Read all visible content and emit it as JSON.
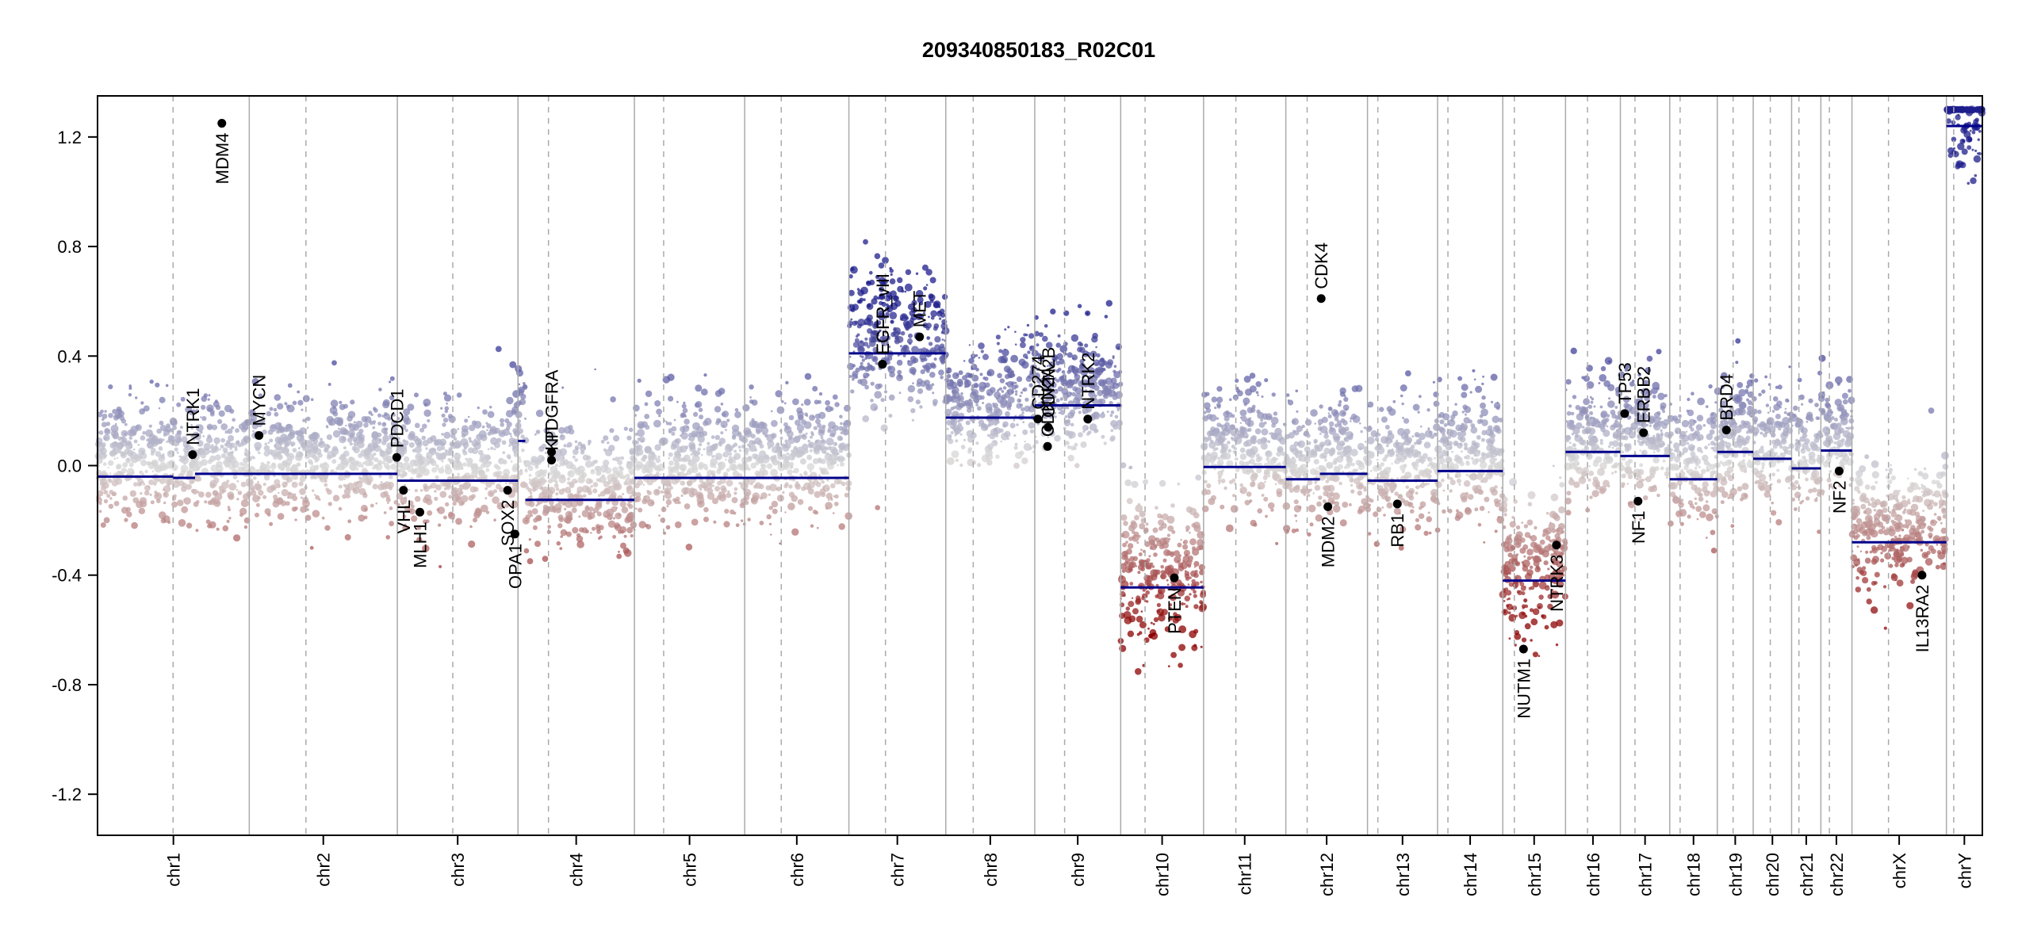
{
  "chart_data": {
    "type": "scatter",
    "title": "209340850183_R02C01",
    "xlabel": "",
    "ylabel": "",
    "ylim": [
      -1.35,
      1.35
    ],
    "y_ticks": [
      -1.2,
      -0.8,
      -0.4,
      0.0,
      0.4,
      0.8,
      1.2
    ],
    "y_tick_labels": [
      "-1.2",
      "-0.8",
      "-0.4",
      "0.0",
      "0.4",
      "0.8",
      "1.2"
    ],
    "grid": false,
    "colors": {
      "gain": "#1c1c8c",
      "neutral": "#d4d4d4",
      "loss": "#8b0000",
      "segment": "#00008b",
      "gene_point": "#000000",
      "chr_boundary": "#aaaaaa",
      "centromere": "#aaaaaa"
    },
    "chromosomes": [
      {
        "name": "chr1",
        "size": 249,
        "centromere": 124
      },
      {
        "name": "chr2",
        "size": 243,
        "centromere": 93
      },
      {
        "name": "chr3",
        "size": 198,
        "centromere": 91
      },
      {
        "name": "chr4",
        "size": 191,
        "centromere": 50
      },
      {
        "name": "chr5",
        "size": 181,
        "centromere": 48
      },
      {
        "name": "chr6",
        "size": 171,
        "centromere": 60
      },
      {
        "name": "chr7",
        "size": 159,
        "centromere": 60
      },
      {
        "name": "chr8",
        "size": 146,
        "centromere": 45
      },
      {
        "name": "chr9",
        "size": 141,
        "centromere": 49
      },
      {
        "name": "chr10",
        "size": 136,
        "centromere": 40
      },
      {
        "name": "chr11",
        "size": 135,
        "centromere": 53
      },
      {
        "name": "chr12",
        "size": 134,
        "centromere": 35
      },
      {
        "name": "chr13",
        "size": 115,
        "centromere": 17
      },
      {
        "name": "chr14",
        "size": 107,
        "centromere": 17
      },
      {
        "name": "chr15",
        "size": 103,
        "centromere": 19
      },
      {
        "name": "chr16",
        "size": 90,
        "centromere": 36
      },
      {
        "name": "chr17",
        "size": 81,
        "centromere": 24
      },
      {
        "name": "chr18",
        "size": 78,
        "centromere": 17
      },
      {
        "name": "chr19",
        "size": 59,
        "centromere": 26
      },
      {
        "name": "chr20",
        "size": 63,
        "centromere": 28
      },
      {
        "name": "chr21",
        "size": 48,
        "centromere": 12
      },
      {
        "name": "chr22",
        "size": 51,
        "centromere": 14
      },
      {
        "name": "chrX",
        "size": 155,
        "centromere": 60
      },
      {
        "name": "chrY",
        "size": 59,
        "centromere": 12
      }
    ],
    "segments": [
      {
        "chr": "chr1",
        "start": 0,
        "end": 124,
        "value": -0.04
      },
      {
        "chr": "chr1",
        "start": 124,
        "end": 160,
        "value": -0.045
      },
      {
        "chr": "chr1",
        "start": 160,
        "end": 249,
        "value": -0.03
      },
      {
        "chr": "chr2",
        "start": 0,
        "end": 243,
        "value": -0.03
      },
      {
        "chr": "chr3",
        "start": 0,
        "end": 198,
        "value": -0.055
      },
      {
        "chr": "chr4",
        "start": 0,
        "end": 12,
        "value": 0.09
      },
      {
        "chr": "chr4",
        "start": 12,
        "end": 191,
        "value": -0.125
      },
      {
        "chr": "chr5",
        "start": 0,
        "end": 181,
        "value": -0.045
      },
      {
        "chr": "chr6",
        "start": 0,
        "end": 171,
        "value": -0.045
      },
      {
        "chr": "chr7",
        "start": 0,
        "end": 159,
        "value": 0.41
      },
      {
        "chr": "chr8",
        "start": 0,
        "end": 146,
        "value": 0.175
      },
      {
        "chr": "chr9",
        "start": 0,
        "end": 141,
        "value": 0.22
      },
      {
        "chr": "chr10",
        "start": 0,
        "end": 136,
        "value": -0.445
      },
      {
        "chr": "chr11",
        "start": 0,
        "end": 135,
        "value": -0.005
      },
      {
        "chr": "chr12",
        "start": 0,
        "end": 56,
        "value": -0.05
      },
      {
        "chr": "chr12",
        "start": 56,
        "end": 134,
        "value": -0.03
      },
      {
        "chr": "chr13",
        "start": 0,
        "end": 115,
        "value": -0.055
      },
      {
        "chr": "chr14",
        "start": 0,
        "end": 107,
        "value": -0.02
      },
      {
        "chr": "chr15",
        "start": 0,
        "end": 103,
        "value": -0.42
      },
      {
        "chr": "chr16",
        "start": 0,
        "end": 90,
        "value": 0.05
      },
      {
        "chr": "chr17",
        "start": 0,
        "end": 81,
        "value": 0.035
      },
      {
        "chr": "chr18",
        "start": 0,
        "end": 78,
        "value": -0.05
      },
      {
        "chr": "chr19",
        "start": 0,
        "end": 59,
        "value": 0.05
      },
      {
        "chr": "chr20",
        "start": 0,
        "end": 63,
        "value": 0.025
      },
      {
        "chr": "chr21",
        "start": 0,
        "end": 48,
        "value": -0.01
      },
      {
        "chr": "chr22",
        "start": 0,
        "end": 51,
        "value": 0.055
      },
      {
        "chr": "chrX",
        "start": 0,
        "end": 155,
        "value": -0.28
      },
      {
        "chr": "chrY",
        "start": 0,
        "end": 59,
        "value": 1.24
      }
    ],
    "genes": [
      {
        "name": "NTRK1",
        "chr": "chr1",
        "pos": 156,
        "value": 0.04,
        "label_side": "above"
      },
      {
        "name": "MDM4",
        "chr": "chr1",
        "pos": 204,
        "value": 1.25,
        "label_side": "below"
      },
      {
        "name": "MYCN",
        "chr": "chr2",
        "pos": 16,
        "value": 0.11,
        "label_side": "above"
      },
      {
        "name": "PDCD1",
        "chr": "chr2",
        "pos": 242,
        "value": 0.03,
        "label_side": "above"
      },
      {
        "name": "VHL",
        "chr": "chr3",
        "pos": 10,
        "value": -0.09,
        "label_side": "below"
      },
      {
        "name": "MLH1",
        "chr": "chr3",
        "pos": 37,
        "value": -0.17,
        "label_side": "below"
      },
      {
        "name": "SOX2",
        "chr": "chr3",
        "pos": 181,
        "value": -0.09,
        "label_side": "below"
      },
      {
        "name": "OPA1",
        "chr": "chr3",
        "pos": 193,
        "value": -0.25,
        "label_side": "below"
      },
      {
        "name": "PDGFRA",
        "chr": "chr4",
        "pos": 55,
        "value": 0.05,
        "label_side": "above"
      },
      {
        "name": "KIT",
        "chr": "chr4",
        "pos": 55,
        "value": 0.02,
        "label_side": "above"
      },
      {
        "name": "EGFR",
        "chr": "chr7",
        "pos": 55,
        "value": 0.37,
        "label_side": "above"
      },
      {
        "name": "EGFR_vIII",
        "chr": "chr7",
        "pos": 55,
        "value": 0.37,
        "label_side": "above"
      },
      {
        "name": "MET",
        "chr": "chr7",
        "pos": 116,
        "value": 0.47,
        "label_side": "above"
      },
      {
        "name": "CD274",
        "chr": "chr9",
        "pos": 5,
        "value": 0.17,
        "label_side": "above"
      },
      {
        "name": "CDKN2A",
        "chr": "chr9",
        "pos": 21,
        "value": 0.07,
        "label_side": "above"
      },
      {
        "name": "CDKN2B",
        "chr": "chr9",
        "pos": 22,
        "value": 0.14,
        "label_side": "above"
      },
      {
        "name": "NTRK2",
        "chr": "chr9",
        "pos": 87,
        "value": 0.17,
        "label_side": "above"
      },
      {
        "name": "PTEN",
        "chr": "chr10",
        "pos": 88,
        "value": -0.41,
        "label_side": "below"
      },
      {
        "name": "MDM2",
        "chr": "chr12",
        "pos": 69,
        "value": -0.15,
        "label_side": "below"
      },
      {
        "name": "CDK4",
        "chr": "chr12",
        "pos": 58,
        "value": 0.61,
        "label_side": "above"
      },
      {
        "name": "RB1",
        "chr": "chr13",
        "pos": 49,
        "value": -0.14,
        "label_side": "below"
      },
      {
        "name": "NUTM1",
        "chr": "chr15",
        "pos": 34,
        "value": -0.67,
        "label_side": "below"
      },
      {
        "name": "NTRK3",
        "chr": "chr15",
        "pos": 88,
        "value": -0.29,
        "label_side": "below"
      },
      {
        "name": "TP53",
        "chr": "chr17",
        "pos": 7,
        "value": 0.19,
        "label_side": "above"
      },
      {
        "name": "ERBB2",
        "chr": "chr17",
        "pos": 38,
        "value": 0.12,
        "label_side": "above"
      },
      {
        "name": "NF1",
        "chr": "chr17",
        "pos": 29,
        "value": -0.13,
        "label_side": "below"
      },
      {
        "name": "BRD4",
        "chr": "chr19",
        "pos": 15,
        "value": 0.13,
        "label_side": "above"
      },
      {
        "name": "NF2",
        "chr": "chr22",
        "pos": 30,
        "value": -0.02,
        "label_side": "below"
      },
      {
        "name": "IL13RA2",
        "chr": "chrX",
        "pos": 115,
        "value": -0.4,
        "label_side": "below"
      }
    ],
    "probes_note_seed": 20934
  }
}
